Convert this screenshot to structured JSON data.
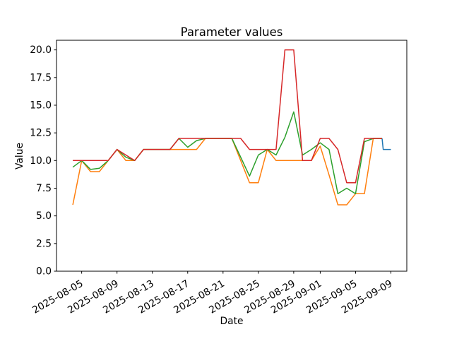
{
  "chart_data": {
    "type": "line",
    "title": "Parameter values",
    "xlabel": "Date",
    "ylabel": "Value",
    "grid": false,
    "legend": "none",
    "x_day0_date": "2025-08-04",
    "x_unit": "days since 2025-08-04",
    "xlim": [
      -1.85,
      37.8
    ],
    "ylim": [
      0,
      20.87
    ],
    "y_ticks": [
      {
        "value": 0.0,
        "label": "0.0"
      },
      {
        "value": 2.5,
        "label": "2.5"
      },
      {
        "value": 5.0,
        "label": "5.0"
      },
      {
        "value": 7.5,
        "label": "7.5"
      },
      {
        "value": 10.0,
        "label": "10.0"
      },
      {
        "value": 12.5,
        "label": "12.5"
      },
      {
        "value": 15.0,
        "label": "15.0"
      },
      {
        "value": 17.5,
        "label": "17.5"
      },
      {
        "value": 20.0,
        "label": "20.0"
      }
    ],
    "x_ticks": [
      {
        "day": 1,
        "label": "2025-08-05"
      },
      {
        "day": 5,
        "label": "2025-08-09"
      },
      {
        "day": 9,
        "label": "2025-08-13"
      },
      {
        "day": 13,
        "label": "2025-08-17"
      },
      {
        "day": 17,
        "label": "2025-08-21"
      },
      {
        "day": 21,
        "label": "2025-08-25"
      },
      {
        "day": 25,
        "label": "2025-08-29"
      },
      {
        "day": 28,
        "label": "2025-09-01"
      },
      {
        "day": 32,
        "label": "2025-09-05"
      },
      {
        "day": 36,
        "label": "2025-09-09"
      }
    ],
    "series": [
      {
        "name": "series-blue-line",
        "color": "#1f77b4",
        "points": [
          [
            35,
            12
          ],
          [
            35.13,
            11
          ],
          [
            36,
            11
          ]
        ]
      },
      {
        "name": "series-orange-line",
        "color": "#ff7f0e",
        "points": [
          [
            0,
            6
          ],
          [
            1,
            10
          ],
          [
            2,
            9
          ],
          [
            3,
            9
          ],
          [
            4,
            10
          ],
          [
            5,
            11
          ],
          [
            6,
            10
          ],
          [
            7,
            10
          ],
          [
            8,
            11
          ],
          [
            9,
            11
          ],
          [
            10,
            11
          ],
          [
            11,
            11
          ],
          [
            12,
            11
          ],
          [
            13,
            11
          ],
          [
            14,
            11
          ],
          [
            15,
            12
          ],
          [
            16,
            12
          ],
          [
            17,
            12
          ],
          [
            18,
            12
          ],
          [
            19,
            10
          ],
          [
            20,
            8
          ],
          [
            21,
            8
          ],
          [
            22,
            11
          ],
          [
            23,
            10
          ],
          [
            24,
            10
          ],
          [
            25,
            10
          ],
          [
            26,
            10
          ],
          [
            27,
            10
          ],
          [
            28,
            11.3
          ],
          [
            29,
            8.7
          ],
          [
            30,
            6
          ],
          [
            31,
            6
          ],
          [
            32,
            7
          ],
          [
            33,
            7
          ],
          [
            34,
            12
          ],
          [
            35,
            12
          ]
        ]
      },
      {
        "name": "series-green-line",
        "color": "#2ca02c",
        "points": [
          [
            0,
            9.4
          ],
          [
            1,
            10
          ],
          [
            2,
            9.2
          ],
          [
            3,
            9.3
          ],
          [
            4,
            10
          ],
          [
            5,
            11
          ],
          [
            6,
            10.3
          ],
          [
            7,
            10
          ],
          [
            8,
            11
          ],
          [
            9,
            11
          ],
          [
            10,
            11
          ],
          [
            11,
            11
          ],
          [
            12,
            12
          ],
          [
            13,
            11.2
          ],
          [
            14,
            11.8
          ],
          [
            15,
            12
          ],
          [
            16,
            12
          ],
          [
            17,
            12
          ],
          [
            18,
            12
          ],
          [
            19,
            10.3
          ],
          [
            20,
            8.6
          ],
          [
            21,
            10.5
          ],
          [
            22,
            11
          ],
          [
            23,
            10.5
          ],
          [
            24,
            12.1
          ],
          [
            25,
            14.4
          ],
          [
            26,
            10.5
          ],
          [
            27,
            11
          ],
          [
            28,
            11.6
          ],
          [
            29,
            11
          ],
          [
            30,
            7
          ],
          [
            31,
            7.5
          ],
          [
            32,
            7
          ],
          [
            33,
            11.7
          ],
          [
            34,
            12
          ],
          [
            35,
            12
          ]
        ]
      },
      {
        "name": "series-red-line",
        "color": "#d62728",
        "points": [
          [
            0,
            10
          ],
          [
            1,
            10
          ],
          [
            2,
            10
          ],
          [
            3,
            10
          ],
          [
            4,
            10
          ],
          [
            5,
            11
          ],
          [
            6,
            10.5
          ],
          [
            7,
            10
          ],
          [
            8,
            11
          ],
          [
            9,
            11
          ],
          [
            10,
            11
          ],
          [
            11,
            11
          ],
          [
            12,
            12
          ],
          [
            13,
            12
          ],
          [
            14,
            12
          ],
          [
            15,
            12
          ],
          [
            16,
            12
          ],
          [
            17,
            12
          ],
          [
            18,
            12
          ],
          [
            19,
            12
          ],
          [
            20,
            11
          ],
          [
            21,
            11
          ],
          [
            22,
            11
          ],
          [
            23,
            11
          ],
          [
            24,
            20
          ],
          [
            25,
            20
          ],
          [
            26,
            10
          ],
          [
            27,
            10
          ],
          [
            28,
            12
          ],
          [
            29,
            12
          ],
          [
            30,
            11
          ],
          [
            31,
            8
          ],
          [
            32,
            8
          ],
          [
            33,
            12
          ],
          [
            34,
            12
          ],
          [
            35,
            12
          ]
        ]
      }
    ]
  }
}
